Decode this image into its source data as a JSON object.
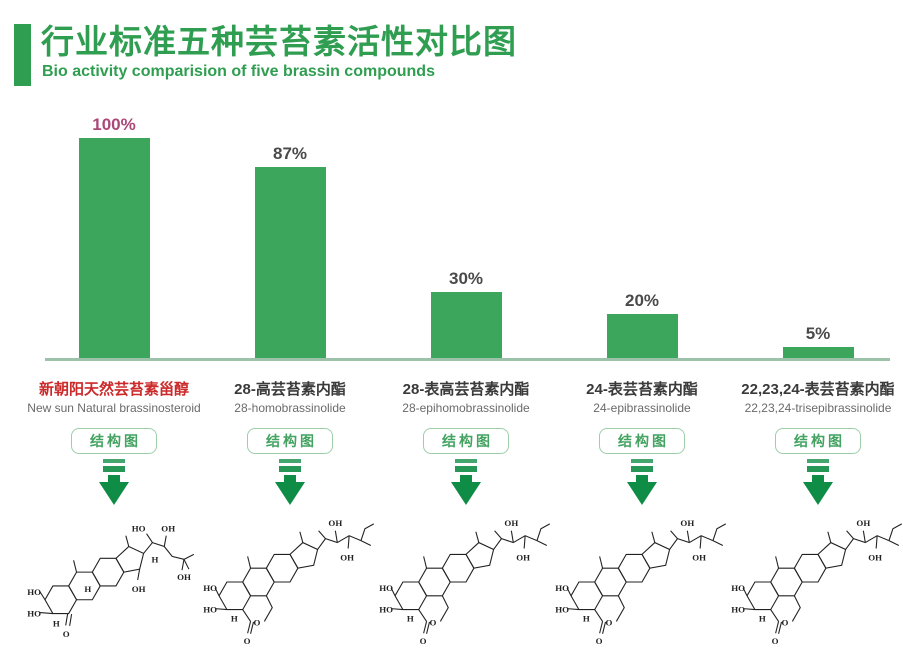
{
  "header": {
    "title_zh": "行业标准五种芸苔素活性对比图",
    "subtitle_en": "Bio activity comparision of five brassin compounds"
  },
  "chart_data": {
    "type": "bar",
    "title": "行业标准五种芸苔素活性对比图",
    "subtitle": "Bio activity comparision of five brassin compounds",
    "categories": [
      "新朝阳天然芸苔素甾醇",
      "28-高芸苔素内酯",
      "28-表高芸苔素内酯",
      "24-表芸苔素内酯",
      "22,23,24-表芸苔素内酯"
    ],
    "categories_en": [
      "New sun Natural brassinosteroid",
      "28-homobrassinolide",
      "28-epihomobrassinolide",
      "24-epibrassinolide",
      "22,23,24-trisepibrassinolide"
    ],
    "values": [
      100,
      87,
      30,
      20,
      5
    ],
    "value_labels": [
      "100%",
      "87%",
      "30%",
      "20%",
      "5%"
    ],
    "ylim": [
      0,
      100
    ],
    "xlabel": "",
    "ylabel": "",
    "grid": false,
    "legend": false,
    "bar_color": "#3ba65c"
  },
  "compounds": [
    {
      "name_zh": "新朝阳天然芸苔素甾醇",
      "name_en": "New sun Natural brassinosteroid",
      "value": 100,
      "pct_label": "100%",
      "highlight": true,
      "structure_variant": "ketone"
    },
    {
      "name_zh": "28-高芸苔素内酯",
      "name_en": "28-homobrassinolide",
      "value": 87,
      "pct_label": "87%",
      "highlight": false,
      "structure_variant": "lactone"
    },
    {
      "name_zh": "28-表高芸苔素内酯",
      "name_en": "28-epihomobrassinolide",
      "value": 30,
      "pct_label": "30%",
      "highlight": false,
      "structure_variant": "lactone"
    },
    {
      "name_zh": "24-表芸苔素内酯",
      "name_en": "24-epibrassinolide",
      "value": 20,
      "pct_label": "20%",
      "highlight": false,
      "structure_variant": "lactone"
    },
    {
      "name_zh": "22,23,24-表芸苔素内酯",
      "name_en": "22,23,24-trisepibrassinolide",
      "value": 5,
      "pct_label": "5%",
      "highlight": false,
      "structure_variant": "lactone"
    }
  ],
  "structure_button_label": "结构图",
  "icons": {
    "arrow": "down-arrow-icon",
    "structure": "chemical-structure-diagram"
  },
  "colors": {
    "green_title": "#2f9e50",
    "green_bar": "#3ba65c",
    "green_arrow": "#0f8c45",
    "axis_line": "#9cc3aa",
    "btn_border": "#9ccfa8",
    "btn_text": "#44a362",
    "value_label": "#4a4a4a",
    "value_label_highlight": "#aa4878",
    "name_default": "#3a3a3a",
    "name_highlight": "#cc2a2a",
    "name_en": "#6a6a6a",
    "structure_ink": "#222222"
  }
}
